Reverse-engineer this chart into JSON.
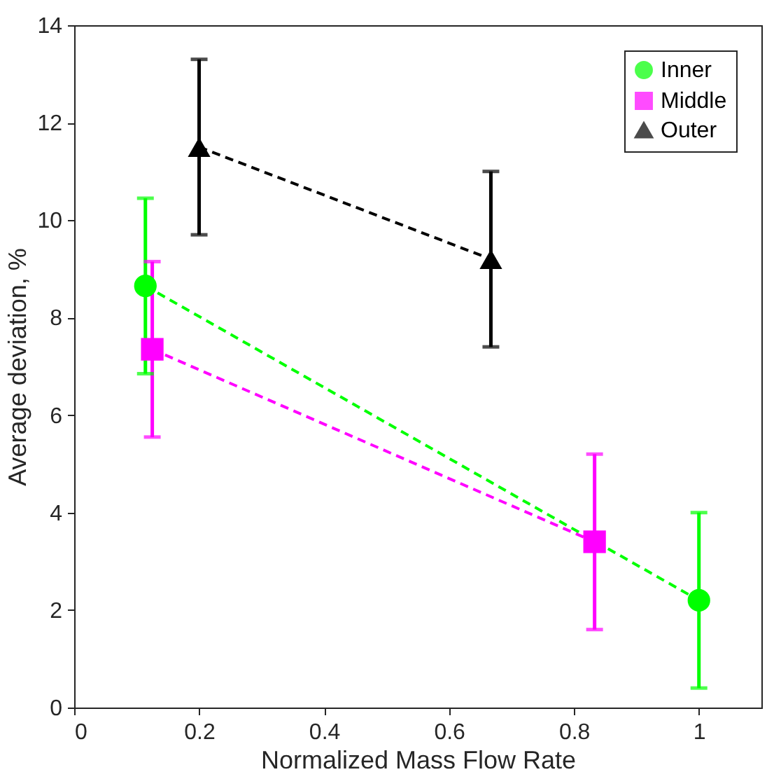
{
  "chart_data": {
    "type": "line",
    "xlabel": "Normalized Mass Flow Rate",
    "ylabel": "Average deviation, %",
    "xlim": [
      0,
      1.1
    ],
    "xticks": [
      0,
      0.2,
      0.4,
      0.6,
      0.8,
      1
    ],
    "ylim": [
      0,
      14
    ],
    "yticks": [
      0,
      2,
      4,
      6,
      8,
      10,
      12,
      14
    ],
    "grid": false,
    "legend": "top right",
    "line_style": "dashed",
    "series": [
      {
        "name": "Inner",
        "color": "#00ff00",
        "marker": "circle",
        "x": [
          0.114,
          1
        ],
        "values": [
          8.65,
          2.2
        ],
        "errors": [
          1.8,
          1.8
        ]
      },
      {
        "name": "Middle",
        "color": "#ff00ff",
        "marker": "square",
        "x": [
          0.125,
          0.833
        ],
        "values": [
          7.35,
          3.4
        ],
        "errors": [
          1.8,
          1.8
        ]
      },
      {
        "name": "Outer",
        "color": "#000000",
        "marker": "triangle",
        "x": [
          0.2,
          0.667
        ],
        "values": [
          11.5,
          9.2
        ],
        "errors": [
          1.8,
          1.8
        ]
      }
    ]
  }
}
